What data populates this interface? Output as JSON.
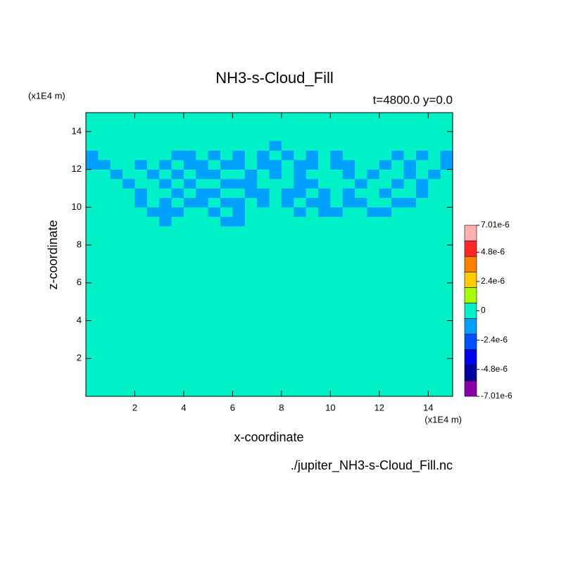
{
  "chart_data": {
    "type": "heatmap",
    "title": "NH3-s-Cloud_Fill",
    "subtitle": "t=4800.0 y=0.0",
    "x_label": "x-coordinate",
    "y_label": "z-coordinate",
    "x_unit_label": "(x1E4 m)",
    "y_unit_label": "(x1E4 m)",
    "source": "./jupiter_NH3-s-Cloud_Fill.nc",
    "xlim": [
      0,
      15
    ],
    "ylim": [
      0,
      15
    ],
    "xticks": [
      2,
      4,
      6,
      8,
      10,
      12,
      14
    ],
    "yticks": [
      2,
      4,
      6,
      8,
      10,
      12,
      14
    ],
    "background_value": 0,
    "x": [
      0.25,
      0.75,
      1.25,
      1.75,
      2.25,
      2.75,
      3.25,
      3.75,
      4.25,
      4.75,
      5.25,
      5.75,
      6.25,
      6.75,
      7.25,
      7.75,
      8.25,
      8.75,
      9.25,
      9.75,
      10.25,
      10.75,
      11.25,
      11.75,
      12.25,
      12.75,
      13.25,
      13.75,
      14.25,
      14.75
    ],
    "y": [
      9.25,
      9.75,
      10.25,
      10.75,
      11.25,
      11.75,
      12.25,
      12.75,
      13.25
    ],
    "z": [
      [
        0,
        0,
        0,
        0,
        0,
        0,
        -1e-06,
        0,
        0,
        0,
        0,
        -1e-06,
        -1e-06,
        0,
        0,
        0,
        0,
        0,
        0,
        0,
        0,
        0,
        0,
        0,
        0,
        0,
        0,
        0,
        0,
        0
      ],
      [
        0,
        0,
        0,
        0,
        0,
        -1e-06,
        -1e-06,
        -1e-06,
        0,
        0,
        -1e-06,
        0,
        -1e-06,
        0,
        0,
        0,
        0,
        -1e-06,
        0,
        -1e-06,
        -1e-06,
        0,
        0,
        -1e-06,
        -1e-06,
        0,
        0,
        0,
        0,
        0
      ],
      [
        0,
        0,
        0,
        0,
        -1e-06,
        0,
        -1e-06,
        0,
        -1e-06,
        -1e-06,
        0,
        -1e-06,
        -1e-06,
        0,
        -1e-06,
        0,
        -1e-06,
        0,
        -1e-06,
        -1e-06,
        0,
        -1e-06,
        -1e-06,
        0,
        0,
        -1e-06,
        -1e-06,
        0,
        0,
        0
      ],
      [
        0,
        0,
        0,
        0,
        -1e-06,
        0,
        0,
        -1e-06,
        0,
        -1e-06,
        -1e-06,
        0,
        0,
        -1e-06,
        -1e-06,
        0,
        -1e-06,
        -1e-06,
        0,
        -1e-06,
        0,
        -1e-06,
        0,
        0,
        -1e-06,
        0,
        0,
        -1e-06,
        0,
        0
      ],
      [
        0,
        0,
        0,
        -1e-06,
        0,
        0,
        -1e-06,
        0,
        -1e-06,
        0,
        0,
        -1e-06,
        -1e-06,
        -1e-06,
        0,
        0,
        0,
        -1e-06,
        -1e-06,
        0,
        0,
        0,
        -1e-06,
        0,
        0,
        -1e-06,
        0,
        -1e-06,
        0,
        0
      ],
      [
        0,
        0,
        -1e-06,
        0,
        0,
        -1e-06,
        0,
        -1e-06,
        0,
        -1e-06,
        -1e-06,
        0,
        0,
        -1e-06,
        0,
        -1e-06,
        0,
        -1e-06,
        0,
        0,
        0,
        -1e-06,
        0,
        -1e-06,
        0,
        0,
        -1e-06,
        0,
        -1e-06,
        0
      ],
      [
        -1e-06,
        -1e-06,
        0,
        0,
        -1e-06,
        0,
        -1e-06,
        0,
        -1e-06,
        -1e-06,
        0,
        -1e-06,
        -1e-06,
        0,
        -1e-06,
        -1e-06,
        0,
        -1e-06,
        -1e-06,
        0,
        -1e-06,
        -1e-06,
        0,
        0,
        -1e-06,
        0,
        -1e-06,
        0,
        0,
        -1e-06
      ],
      [
        -1e-06,
        0,
        0,
        0,
        0,
        0,
        0,
        -1e-06,
        -1e-06,
        0,
        -1e-06,
        0,
        -1e-06,
        0,
        -1e-06,
        0,
        -1e-06,
        0,
        -1e-06,
        0,
        -1e-06,
        0,
        0,
        0,
        0,
        -1e-06,
        0,
        -1e-06,
        0,
        -1e-06
      ],
      [
        0,
        0,
        0,
        0,
        0,
        0,
        0,
        0,
        0,
        0,
        0,
        0,
        0,
        0,
        0,
        -1e-06,
        0,
        0,
        0,
        0,
        0,
        0,
        0,
        0,
        0,
        0,
        0,
        0,
        0,
        0
      ]
    ],
    "clim": [
      -7.01e-06,
      7.01e-06
    ],
    "colors": [
      "#8a00a8",
      "#0000a0",
      "#0000f0",
      "#0050ff",
      "#00a0ff",
      "#00f0c8",
      "#a8ff00",
      "#ffcc00",
      "#ff8000",
      "#ff2828",
      "#ffb0b0"
    ],
    "colorbar_ticks": [
      {
        "value": 7.01e-06,
        "label": "7.01e-6"
      },
      {
        "value": 4.8e-06,
        "label": "4.8e-6"
      },
      {
        "value": 2.4e-06,
        "label": "2.4e-6"
      },
      0,
      {
        "value": -2.4e-06,
        "label": "-2.4e-6"
      },
      {
        "value": -4.8e-06,
        "label": "-4.8e-6"
      },
      {
        "value": -7.01e-06,
        "label": "-7.01e-6"
      }
    ]
  }
}
